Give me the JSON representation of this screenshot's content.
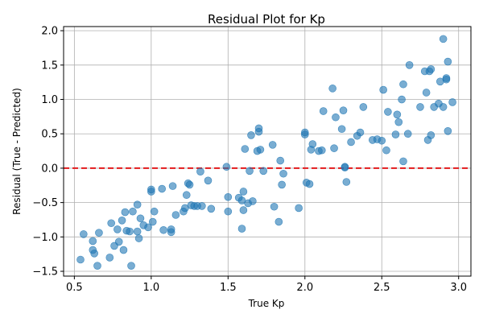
{
  "chart_data": {
    "type": "scatter",
    "title": "Residual Plot for Kp",
    "xlabel": "True Kp",
    "ylabel": "Residual (True - Predicted)",
    "xlim": [
      0.43,
      3.08
    ],
    "ylim": [
      -1.57,
      2.06
    ],
    "xticks": [
      0.5,
      1.0,
      1.5,
      2.0,
      2.5,
      3.0
    ],
    "xtick_labels": [
      "0.5",
      "1.0",
      "1.5",
      "2.0",
      "2.5",
      "3.0"
    ],
    "yticks": [
      -1.5,
      -1.0,
      -0.5,
      0.0,
      0.5,
      1.0,
      1.5,
      2.0
    ],
    "ytick_labels": [
      "−1.5",
      "−1.0",
      "−0.5",
      "0.0",
      "0.5",
      "1.0",
      "1.5",
      "2.0"
    ],
    "grid": true,
    "reference_line": {
      "y": 0,
      "style": "dashed",
      "color": "#e31a1c"
    },
    "marker_color": "#1f77b4",
    "series": [
      {
        "name": "residuals",
        "x": [
          0.54,
          0.56,
          0.62,
          0.62,
          0.63,
          0.65,
          0.66,
          0.73,
          0.74,
          0.76,
          0.78,
          0.79,
          0.81,
          0.82,
          0.83,
          0.84,
          0.86,
          0.87,
          0.88,
          0.91,
          0.91,
          0.92,
          0.93,
          0.95,
          0.98,
          1.0,
          1.0,
          1.01,
          1.02,
          1.07,
          1.08,
          1.13,
          1.13,
          1.14,
          1.16,
          1.21,
          1.22,
          1.23,
          1.24,
          1.25,
          1.26,
          1.28,
          1.3,
          1.32,
          1.33,
          1.37,
          1.39,
          1.49,
          1.5,
          1.5,
          1.57,
          1.59,
          1.59,
          1.6,
          1.6,
          1.61,
          1.63,
          1.64,
          1.65,
          1.66,
          1.69,
          1.7,
          1.7,
          1.71,
          1.73,
          1.79,
          1.8,
          1.83,
          1.84,
          1.85,
          1.86,
          1.96,
          2.0,
          2.0,
          2.01,
          2.03,
          2.04,
          2.05,
          2.09,
          2.11,
          2.12,
          2.18,
          2.19,
          2.2,
          2.24,
          2.25,
          2.26,
          2.26,
          2.27,
          2.3,
          2.34,
          2.36,
          2.38,
          2.44,
          2.47,
          2.5,
          2.51,
          2.53,
          2.54,
          2.59,
          2.6,
          2.61,
          2.63,
          2.64,
          2.64,
          2.67,
          2.68,
          2.75,
          2.78,
          2.79,
          2.8,
          2.81,
          2.82,
          2.82,
          2.84,
          2.87,
          2.88,
          2.9,
          2.9,
          2.92,
          2.92,
          2.93,
          2.93,
          2.96
        ],
        "y": [
          -1.33,
          -0.96,
          -1.06,
          -1.19,
          -1.24,
          -1.42,
          -0.94,
          -1.3,
          -0.8,
          -1.13,
          -0.89,
          -1.07,
          -0.76,
          -1.19,
          -0.64,
          -0.91,
          -0.92,
          -1.42,
          -0.63,
          -0.53,
          -0.92,
          -1.02,
          -0.73,
          -0.83,
          -0.86,
          -0.34,
          -0.31,
          -0.78,
          -0.63,
          -0.3,
          -0.9,
          -0.93,
          -0.89,
          -0.26,
          -0.68,
          -0.63,
          -0.58,
          -0.39,
          -0.22,
          -0.24,
          -0.54,
          -0.55,
          -0.55,
          -0.05,
          -0.55,
          -0.18,
          -0.59,
          0.02,
          -0.63,
          -0.42,
          -0.43,
          -0.88,
          -0.47,
          -0.34,
          -0.61,
          0.28,
          -0.51,
          -0.04,
          0.48,
          -0.48,
          0.25,
          0.53,
          0.58,
          0.27,
          -0.04,
          0.34,
          -0.56,
          -0.78,
          0.11,
          -0.24,
          -0.08,
          -0.58,
          0.49,
          0.52,
          -0.21,
          -0.23,
          0.27,
          0.35,
          0.25,
          0.26,
          0.83,
          1.16,
          0.29,
          0.74,
          0.57,
          0.84,
          0.02,
          0.01,
          -0.2,
          0.38,
          0.47,
          0.52,
          0.89,
          0.41,
          0.42,
          0.4,
          1.14,
          0.26,
          0.82,
          0.49,
          0.78,
          0.67,
          1.0,
          1.22,
          0.1,
          0.5,
          1.5,
          0.89,
          1.41,
          1.1,
          0.41,
          1.41,
          1.44,
          0.48,
          0.89,
          0.94,
          1.26,
          1.88,
          0.89,
          1.31,
          1.29,
          0.54,
          1.55,
          0.96
        ]
      }
    ]
  }
}
